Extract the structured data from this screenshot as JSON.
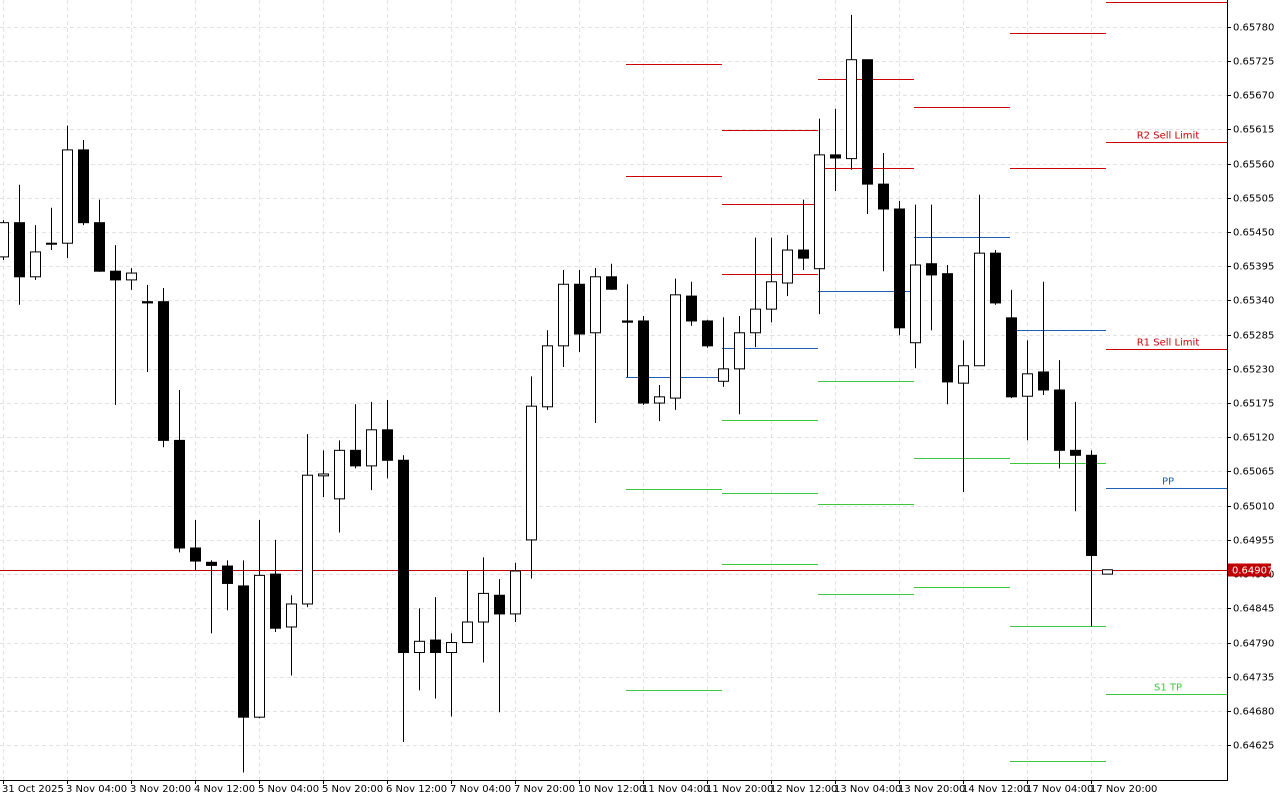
{
  "chart_data": {
    "type": "candlestick",
    "grid": true,
    "up_color": "#ffffff",
    "down_color": "#000000",
    "current_price": 0.64907,
    "current_price_color": "#c00000",
    "ylim": [
      0.64569,
      0.65823
    ],
    "yticks": [
      {
        "value": 0.6578,
        "label": "0.65780"
      },
      0.65725,
      {
        "value": 0.6567,
        "label": "0.65670"
      },
      0.65615,
      {
        "value": 0.6556,
        "label": "0.65560"
      },
      0.65505,
      {
        "value": 0.6545,
        "label": "0.65450"
      },
      0.65395,
      {
        "value": 0.6534,
        "label": "0.65340"
      },
      0.65285,
      {
        "value": 0.6523,
        "label": "0.65230"
      },
      0.65175,
      {
        "value": 0.6512,
        "label": "0.65120"
      },
      0.65065,
      {
        "value": 0.6501,
        "label": "0.65010"
      },
      0.64955,
      {
        "value": 0.649,
        "label": "0.64900"
      },
      0.64845,
      {
        "value": 0.6479,
        "label": "0.64790"
      },
      0.64735,
      {
        "value": 0.6468,
        "label": "0.64680"
      },
      0.64625
    ],
    "categories": [
      "31 Oct 2025",
      null,
      null,
      null,
      "3 Nov 04:00",
      null,
      null,
      null,
      "3 Nov 20:00",
      null,
      null,
      null,
      "4 Nov 12:00",
      null,
      null,
      null,
      "5 Nov 04:00",
      null,
      null,
      null,
      "5 Nov 20:00",
      null,
      null,
      null,
      "6 Nov 12:00",
      null,
      null,
      null,
      "7 Nov 04:00",
      null,
      null,
      null,
      "7 Nov 20:00",
      null,
      null,
      null,
      "10 Nov 12:00",
      null,
      null,
      null,
      "11 Nov 04:00",
      null,
      null,
      null,
      "11 Nov 20:00",
      null,
      null,
      null,
      "12 Nov 12:00",
      null,
      null,
      null,
      "13 Nov 04:00",
      null,
      null,
      null,
      "13 Nov 20:00",
      null,
      null,
      null,
      "14 Nov 12:00",
      null,
      null,
      null,
      "17 Nov 04:00",
      null,
      null,
      null,
      "17 Nov 20:00",
      null
    ],
    "open": [
      0.6541,
      0.65465,
      0.65378,
      0.65432,
      0.65432,
      0.65582,
      0.65465,
      0.65387,
      0.65373,
      0.65338,
      0.65338,
      0.65115,
      0.64942,
      0.64919,
      0.64913,
      0.64881,
      0.6467,
      0.649,
      0.64815,
      0.64852,
      0.65058,
      0.65021,
      0.65099,
      0.65074,
      0.65132,
      0.65083,
      0.64774,
      0.64794,
      0.64774,
      0.6479,
      0.64823,
      0.64866,
      0.64836,
      0.64955,
      0.65169,
      0.65267,
      0.65366,
      0.65288,
      0.65378,
      0.65307,
      0.65307,
      0.65175,
      0.65183,
      0.65347,
      0.65307,
      0.6521,
      0.6523,
      0.65288,
      0.65326,
      0.65368,
      0.65421,
      0.65391,
      0.65574,
      0.65568,
      0.65727,
      0.65527,
      0.65487,
      0.65272,
      0.65399,
      0.65383,
      0.65207,
      0.65235,
      0.65416,
      0.65312,
      0.65186,
      0.65225,
      0.65196,
      0.65099,
      0.65091,
      0.649
    ],
    "high": [
      0.65469,
      0.65526,
      0.65461,
      0.65489,
      0.65621,
      0.65598,
      0.65502,
      0.65429,
      0.65392,
      0.65365,
      0.6536,
      0.65196,
      0.64987,
      0.64922,
      0.64922,
      0.64922,
      0.64987,
      0.64955,
      0.64866,
      0.65125,
      0.65099,
      0.65115,
      0.65173,
      0.65177,
      0.6518,
      0.65091,
      0.64845,
      0.64863,
      0.64805,
      0.64905,
      0.64927,
      0.64892,
      0.64918,
      0.65218,
      0.65292,
      0.65389,
      0.65389,
      0.65392,
      0.65399,
      0.65366,
      0.65315,
      0.65204,
      0.65375,
      0.6537,
      0.65309,
      0.65313,
      0.65315,
      0.65441,
      0.65441,
      0.65445,
      0.65502,
      0.65632,
      0.65648,
      0.65799,
      0.65727,
      0.65577,
      0.655,
      0.65494,
      0.65494,
      0.65397,
      0.65276,
      0.6551,
      0.65421,
      0.65357,
      0.65276,
      0.6537,
      0.65244,
      0.65177,
      0.65099,
      0.64907
    ],
    "low": [
      0.65405,
      0.65333,
      0.65373,
      0.65421,
      0.65408,
      0.65461,
      0.65386,
      0.65172,
      0.65357,
      0.65225,
      0.65104,
      0.64935,
      0.64906,
      0.64805,
      0.64842,
      0.64581,
      0.64668,
      0.64807,
      0.64737,
      0.64847,
      0.65024,
      0.64967,
      0.6507,
      0.65035,
      0.65054,
      0.6463,
      0.64713,
      0.647,
      0.64671,
      0.64789,
      0.64758,
      0.64678,
      0.64823,
      0.64893,
      0.65164,
      0.65233,
      0.65257,
      0.65143,
      0.65357,
      0.65217,
      0.65172,
      0.65146,
      0.65164,
      0.65299,
      0.65264,
      0.65201,
      0.65157,
      0.65265,
      0.65305,
      0.65347,
      0.65389,
      0.65318,
      0.65516,
      0.6555,
      0.65479,
      0.65387,
      0.65284,
      0.65231,
      0.65292,
      0.65173,
      0.65032,
      0.65235,
      0.65333,
      0.65183,
      0.65115,
      0.65188,
      0.6507,
      0.65001,
      0.64816,
      0.649
    ],
    "close": [
      0.65465,
      0.65378,
      0.65418,
      0.65431,
      0.65582,
      0.65465,
      0.65387,
      0.65373,
      0.65384,
      0.65336,
      0.65115,
      0.64942,
      0.64921,
      0.64914,
      0.64885,
      0.6467,
      0.64898,
      0.64813,
      0.64852,
      0.65059,
      0.65061,
      0.65099,
      0.65074,
      0.65132,
      0.65083,
      0.64774,
      0.64792,
      0.64774,
      0.6479,
      0.64823,
      0.64869,
      0.64836,
      0.64905,
      0.6517,
      0.65267,
      0.65366,
      0.65286,
      0.65378,
      0.65358,
      0.65305,
      0.65175,
      0.65185,
      0.65349,
      0.65307,
      0.65267,
      0.6523,
      0.65288,
      0.65326,
      0.6537,
      0.65421,
      0.65408,
      0.65574,
      0.65569,
      0.65727,
      0.65527,
      0.65487,
      0.65296,
      0.65397,
      0.65381,
      0.65209,
      0.65235,
      0.65416,
      0.65336,
      0.65185,
      0.65222,
      0.65196,
      0.65099,
      0.65091,
      0.6493,
      0.64907
    ],
    "resistance_color": "#cc0000",
    "pivot_color": "#1f5fb4",
    "support_color": "#3cc83c",
    "levels": [
      {
        "resistance": [
          0.6572,
          0.6554
        ],
        "pivot": 0.65217,
        "support": [
          0.65037,
          0.64713
        ]
      },
      {
        "resistance": [
          0.65614,
          0.65495,
          0.65383
        ],
        "pivot": 0.65264,
        "support": [
          0.65148,
          0.6503,
          0.64916
        ]
      },
      {
        "resistance": [
          0.65696,
          0.65553
        ],
        "pivot": 0.65355,
        "support": [
          0.6521,
          0.65013,
          0.64868
        ]
      },
      {
        "resistance": [
          0.65651
        ],
        "pivot": 0.65442,
        "support": [
          0.65087,
          0.64879
        ]
      },
      {
        "resistance": [
          0.6577,
          0.65553
        ],
        "pivot": 0.65292,
        "support": [
          0.65078,
          0.64816,
          0.64599
        ]
      },
      {
        "resistance": [
          0.65819,
          0.65595,
          0.65262
        ],
        "resistance_labels": [
          null,
          "R2 Sell Limit",
          "R1 Sell Limit"
        ],
        "pivot": 0.65038,
        "pivot_label": "PP",
        "support": [
          0.64708
        ],
        "support_labels": [
          "S1 TP"
        ]
      }
    ]
  }
}
